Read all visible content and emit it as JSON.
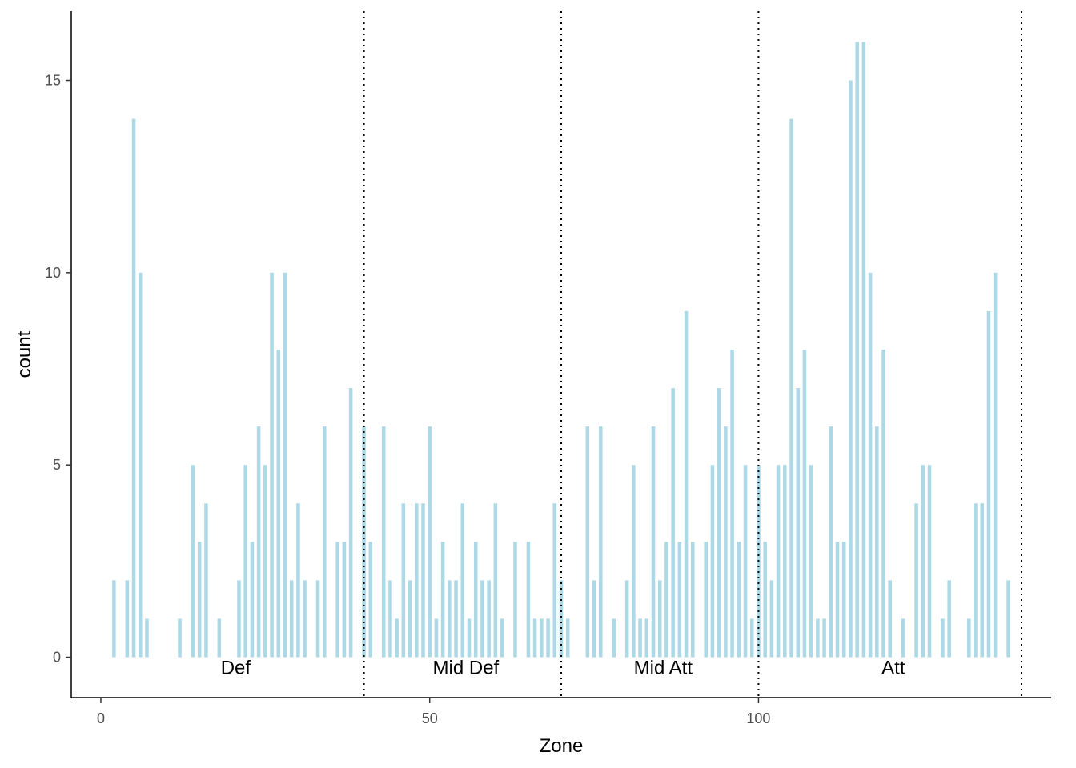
{
  "chart_data": {
    "type": "bar",
    "xlabel": "Zone",
    "ylabel": "count",
    "xlim": [
      -4.5,
      144.5
    ],
    "ylim": [
      -1.05,
      16.8
    ],
    "x_ticks": [
      0,
      50,
      100
    ],
    "y_ticks": [
      0,
      5,
      10,
      15
    ],
    "grid": false,
    "legend": "none",
    "bar_color": "#add8e6",
    "zone_boundaries": [
      40,
      70,
      100,
      140
    ],
    "zone_labels": [
      {
        "text": "Def",
        "x": 20.5,
        "y": -0.25
      },
      {
        "text": "Mid Def",
        "x": 55.5,
        "y": -0.25
      },
      {
        "text": "Mid Att",
        "x": 85.5,
        "y": -0.25
      },
      {
        "text": "Att",
        "x": 120.5,
        "y": -0.25
      }
    ],
    "x": [
      2,
      4,
      5,
      6,
      7,
      12,
      14,
      15,
      16,
      18,
      21,
      22,
      23,
      24,
      25,
      26,
      27,
      28,
      29,
      30,
      31,
      33,
      34,
      36,
      37,
      38,
      40,
      41,
      43,
      44,
      45,
      46,
      47,
      48,
      49,
      50,
      51,
      52,
      53,
      54,
      55,
      56,
      57,
      58,
      59,
      60,
      61,
      63,
      65,
      66,
      67,
      68,
      69,
      70,
      71,
      74,
      75,
      76,
      78,
      80,
      81,
      82,
      83,
      84,
      85,
      86,
      87,
      88,
      89,
      90,
      92,
      93,
      94,
      95,
      96,
      97,
      98,
      99,
      100,
      101,
      102,
      103,
      104,
      105,
      106,
      107,
      108,
      109,
      110,
      111,
      112,
      113,
      114,
      115,
      116,
      117,
      118,
      119,
      120,
      122,
      124,
      125,
      126,
      128,
      129,
      132,
      133,
      134,
      135,
      136,
      138
    ],
    "values": [
      2,
      2,
      14,
      10,
      1,
      1,
      5,
      3,
      4,
      1,
      2,
      5,
      3,
      6,
      5,
      10,
      8,
      10,
      2,
      4,
      2,
      2,
      6,
      3,
      3,
      7,
      6,
      3,
      6,
      2,
      1,
      4,
      2,
      4,
      4,
      6,
      1,
      3,
      2,
      2,
      4,
      1,
      3,
      2,
      2,
      4,
      1,
      3,
      3,
      1,
      1,
      1,
      4,
      2,
      1,
      6,
      2,
      6,
      1,
      2,
      5,
      1,
      1,
      6,
      2,
      3,
      7,
      3,
      9,
      3,
      3,
      5,
      7,
      6,
      8,
      3,
      5,
      1,
      5,
      3,
      2,
      5,
      5,
      14,
      7,
      8,
      5,
      1,
      1,
      6,
      3,
      3,
      15,
      16,
      16,
      10,
      6,
      8,
      2,
      1,
      4,
      5,
      5,
      1,
      2,
      1,
      4,
      4,
      9,
      10,
      2
    ]
  }
}
